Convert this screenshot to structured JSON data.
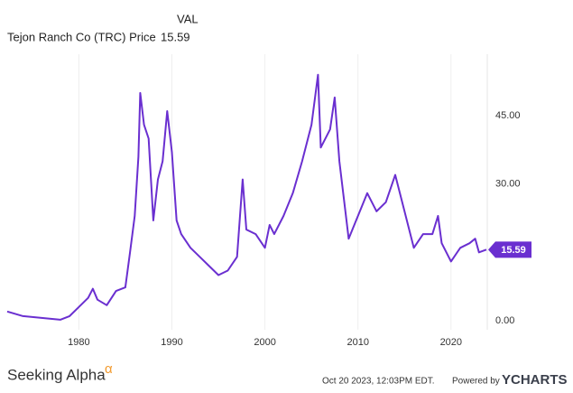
{
  "chart_data": {
    "type": "line",
    "legend_header": "VAL",
    "series": [
      {
        "name": "Tejon Ranch Co (TRC) Price",
        "color": "#6a2fd0",
        "x": [
          1972.3,
          1974,
          1976,
          1978,
          1979,
          1980,
          1981,
          1981.5,
          1982,
          1983,
          1984,
          1985,
          1985.5,
          1986,
          1986.4,
          1986.6,
          1987,
          1987.5,
          1988,
          1988.5,
          1989,
          1989.5,
          1990,
          1990.5,
          1991,
          1992,
          1993,
          1994,
          1995,
          1996,
          1997,
          1997.6,
          1998,
          1999,
          2000,
          2000.5,
          2001,
          2002,
          2003,
          2004,
          2005,
          2005.7,
          2006,
          2007,
          2007.5,
          2008,
          2009,
          2010,
          2011,
          2012,
          2013,
          2014,
          2015,
          2016,
          2017,
          2018,
          2018.6,
          2019,
          2020,
          2021,
          2022,
          2022.6,
          2023,
          2023.8
        ],
        "values": [
          2.0,
          1.0,
          0.6,
          0.2,
          1.0,
          3.0,
          5,
          7,
          4.6,
          3.4,
          6.5,
          7.3,
          15,
          23,
          36,
          50,
          43,
          40,
          22,
          31,
          35,
          46,
          37,
          22,
          19,
          16,
          14,
          12,
          10,
          11,
          14,
          31,
          20,
          19,
          16,
          21,
          19,
          23,
          28,
          35,
          43,
          54,
          38,
          42,
          49,
          35,
          18,
          23,
          28,
          24,
          26,
          32,
          24,
          16,
          19,
          19,
          23,
          17,
          13,
          16,
          17,
          18,
          15,
          15.59
        ]
      }
    ],
    "xlim": [
      1972.3,
      2023.8
    ],
    "xticks": [
      1980,
      1990,
      2000,
      2010,
      2020
    ],
    "ylim": [
      -2,
      58.5
    ],
    "yticks": [
      {
        "value": 0,
        "label": "0.00"
      },
      {
        "value": 30,
        "label": "30.00"
      },
      {
        "value": 45,
        "label": "45.00"
      }
    ],
    "grid": true,
    "source": "Seeking Alpha",
    "source_mark": "α",
    "timestamp": "Oct 20 2023, 12:03PM EDT.",
    "powered_by": "Powered by",
    "brand": "YCHARTS"
  }
}
